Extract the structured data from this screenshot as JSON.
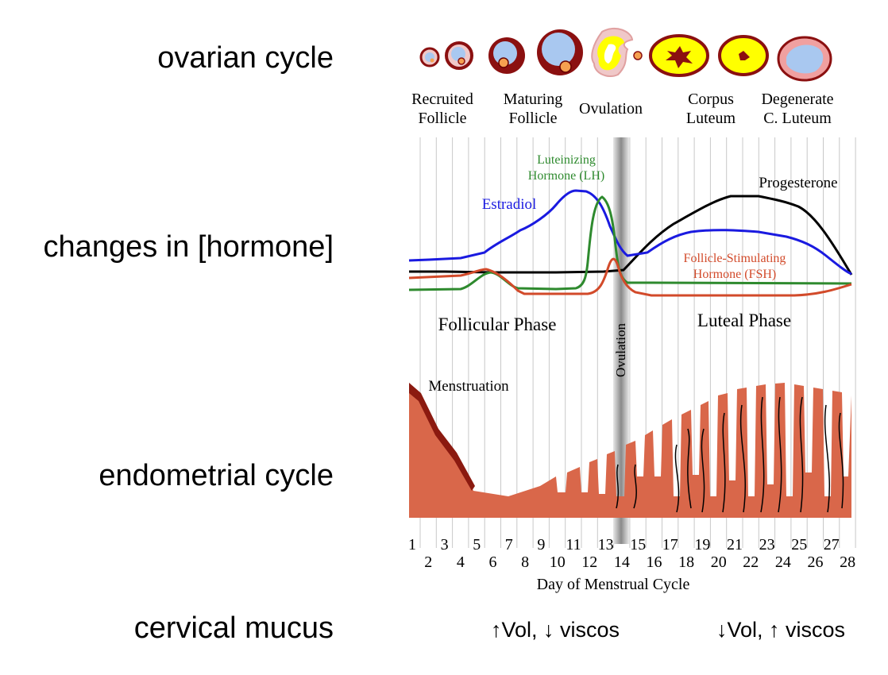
{
  "row_labels": {
    "ovarian": "ovarian cycle",
    "hormone": "changes in [hormone]",
    "endometrial": "endometrial cycle",
    "mucus": "cervical mucus"
  },
  "ovary_stages": {
    "recruited": [
      "Recruited",
      "Follicle"
    ],
    "maturing": [
      "Maturing",
      "Follicle"
    ],
    "ovulation": "Ovulation",
    "corpus": [
      "Corpus",
      "Luteum"
    ],
    "degenerate": [
      "Degenerate",
      "C. Luteum"
    ]
  },
  "hormones": {
    "lh": [
      "Luteinizing",
      "Hormone (LH)"
    ],
    "estradiol": "Estradiol",
    "progesterone": "Progesterone",
    "fsh": [
      "Follicle-Stimulating",
      "Hormone (FSH)"
    ]
  },
  "phases": {
    "follicular": "Follicular Phase",
    "luteal": "Luteal Phase",
    "ovulation_bar": "Ovulation"
  },
  "endometrium": {
    "menstruation": "Menstruation"
  },
  "axis": {
    "odd_days": [
      "1",
      "3",
      "5",
      "7",
      "9",
      "11",
      "13",
      "15",
      "17",
      "19",
      "21",
      "23",
      "25",
      "27"
    ],
    "even_days": [
      "2",
      "4",
      "6",
      "8",
      "10",
      "12",
      "14",
      "16",
      "18",
      "20",
      "22",
      "24",
      "26",
      "28"
    ],
    "title": "Day of Menstrual Cycle"
  },
  "mucus": {
    "follicular": "↑Vol, ↓ viscos",
    "luteal": "↓Vol, ↑ viscos"
  },
  "colors": {
    "estradiol": "#1a1ae0",
    "lh": "#2e8a2e",
    "fsh": "#d24a2a",
    "progesterone": "#000000",
    "endometrium": "#d9674a",
    "follicle_fill": "#a9c8f0",
    "corpus_fill": "#ffff00",
    "ovary_dark": "#8b1010"
  }
}
